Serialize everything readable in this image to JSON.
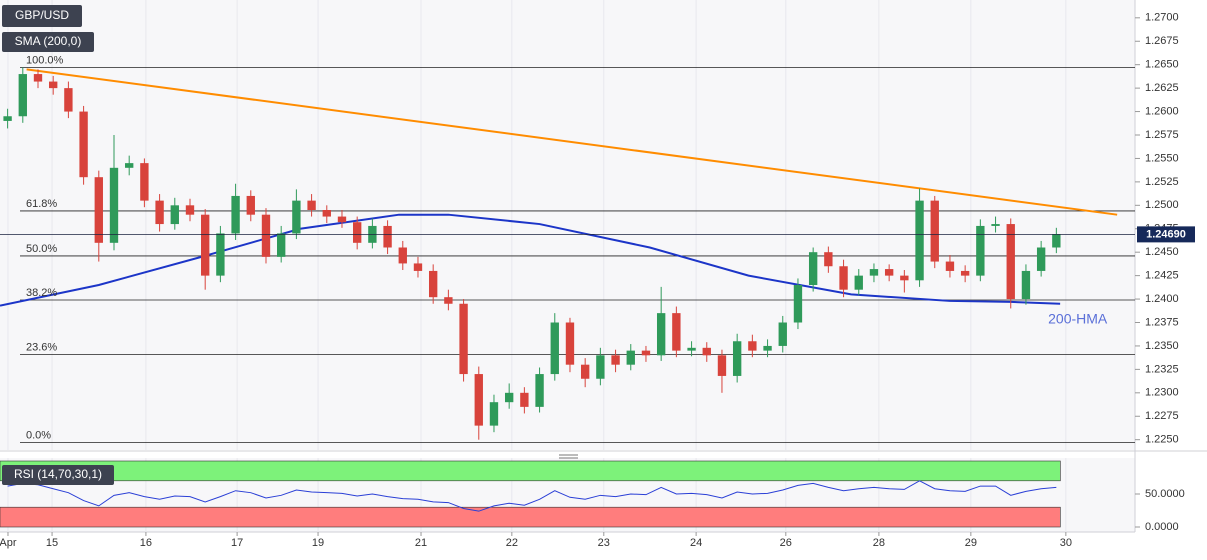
{
  "chart_data": {
    "type": "candlestick",
    "title": "GBP/USD",
    "overlay_label": "SMA (200,0)",
    "up_color": "#2f9a5a",
    "down_color": "#d8433c",
    "xlim": [
      0,
      298.7
    ],
    "xticks": [
      {
        "value": 2.1,
        "label": "Apr"
      },
      {
        "value": 13.7,
        "label": "15"
      },
      {
        "value": 38.4,
        "label": "16"
      },
      {
        "value": 62.4,
        "label": "17"
      },
      {
        "value": 83.7,
        "label": "19"
      },
      {
        "value": 110.8,
        "label": "21"
      },
      {
        "value": 134.7,
        "label": "22"
      },
      {
        "value": 158.9,
        "label": "23"
      },
      {
        "value": 183.2,
        "label": "24"
      },
      {
        "value": 206.8,
        "label": "26"
      },
      {
        "value": 231.3,
        "label": "28"
      },
      {
        "value": 255.5,
        "label": "29"
      },
      {
        "value": 280.5,
        "label": "30"
      }
    ],
    "ylim": [
      1.2239,
      1.2719
    ],
    "yticks": [
      {
        "value": 1.27,
        "label": "1.2700"
      },
      {
        "value": 1.2675,
        "label": "1.2675"
      },
      {
        "value": 1.265,
        "label": "1.2650"
      },
      {
        "value": 1.2625,
        "label": "1.2625"
      },
      {
        "value": 1.26,
        "label": "1.2600"
      },
      {
        "value": 1.2575,
        "label": "1.2575"
      },
      {
        "value": 1.255,
        "label": "1.2550"
      },
      {
        "value": 1.2525,
        "label": "1.2525"
      },
      {
        "value": 1.25,
        "label": "1.2500"
      },
      {
        "value": 1.2475,
        "label": "1.2475"
      },
      {
        "value": 1.245,
        "label": "1.2450"
      },
      {
        "value": 1.2425,
        "label": "1.2425"
      },
      {
        "value": 1.24,
        "label": "1.2400"
      },
      {
        "value": 1.2375,
        "label": "1.2375"
      },
      {
        "value": 1.235,
        "label": "1.2350"
      },
      {
        "value": 1.2325,
        "label": "1.2325"
      },
      {
        "value": 1.23,
        "label": "1.2300"
      },
      {
        "value": 1.2275,
        "label": "1.2275"
      },
      {
        "value": 1.225,
        "label": "1.2250"
      }
    ],
    "candles": {
      "x": [
        2,
        6,
        10,
        14,
        18,
        22,
        26,
        30,
        34,
        38,
        42,
        46,
        50,
        54,
        58,
        62,
        66,
        70,
        74,
        78,
        82,
        86,
        90,
        94,
        98,
        102,
        106,
        110,
        114,
        118,
        122,
        126,
        130,
        134,
        138,
        142,
        146,
        150,
        154,
        158,
        162,
        166,
        170,
        174,
        178,
        182,
        186,
        190,
        194,
        198,
        202,
        206,
        210,
        214,
        218,
        222,
        226,
        230,
        234,
        238,
        242,
        246,
        250,
        254,
        258,
        262,
        266,
        270,
        274,
        278
      ],
      "open": [
        1.259,
        1.2595,
        1.264,
        1.2632,
        1.2625,
        1.26,
        1.253,
        1.246,
        1.254,
        1.2545,
        1.2505,
        1.248,
        1.25,
        1.249,
        1.2425,
        1.247,
        1.251,
        1.249,
        1.2445,
        1.247,
        1.2505,
        1.2495,
        1.2488,
        1.2482,
        1.246,
        1.2478,
        1.2455,
        1.2438,
        1.243,
        1.2402,
        1.2395,
        1.232,
        1.2265,
        1.229,
        1.23,
        1.2285,
        1.232,
        1.2375,
        1.233,
        1.2315,
        1.234,
        1.233,
        1.2345,
        1.234,
        1.2385,
        1.2345,
        1.2348,
        1.234,
        1.2318,
        1.2355,
        1.2345,
        1.235,
        1.2375,
        1.2415,
        1.245,
        1.2435,
        1.241,
        1.2425,
        1.2432,
        1.2425,
        1.242,
        1.2505,
        1.244,
        1.243,
        1.2425,
        1.2478,
        1.248,
        1.24,
        1.243,
        1.2455
      ],
      "high": [
        1.2603,
        1.2647,
        1.2645,
        1.2638,
        1.2632,
        1.2606,
        1.2537,
        1.2575,
        1.2553,
        1.255,
        1.2512,
        1.2508,
        1.2507,
        1.2496,
        1.2478,
        1.2523,
        1.2516,
        1.2497,
        1.2478,
        1.2517,
        1.2512,
        1.25,
        1.2495,
        1.2488,
        1.2486,
        1.2484,
        1.2462,
        1.2445,
        1.2437,
        1.241,
        1.24,
        1.2328,
        1.2298,
        1.231,
        1.2306,
        1.2327,
        1.2385,
        1.238,
        1.2337,
        1.2348,
        1.2346,
        1.2352,
        1.235,
        1.2413,
        1.2392,
        1.2355,
        1.2354,
        1.2346,
        1.2363,
        1.2362,
        1.2357,
        1.2382,
        1.2422,
        1.2455,
        1.2456,
        1.2442,
        1.2432,
        1.2438,
        1.2437,
        1.2431,
        1.2518,
        1.251,
        1.2447,
        1.2436,
        1.2485,
        1.2488,
        1.2486,
        1.2437,
        1.2462,
        1.2476
      ],
      "low": [
        1.2582,
        1.2588,
        1.2625,
        1.2618,
        1.2593,
        1.2522,
        1.244,
        1.2452,
        1.2532,
        1.2498,
        1.2472,
        1.2474,
        1.2483,
        1.241,
        1.2418,
        1.2463,
        1.2483,
        1.2438,
        1.2439,
        1.2464,
        1.2488,
        1.2481,
        1.2476,
        1.2453,
        1.2454,
        1.2448,
        1.2431,
        1.2423,
        1.2395,
        1.2388,
        1.2312,
        1.225,
        1.2258,
        1.2283,
        1.2278,
        1.2279,
        1.2313,
        1.2322,
        1.2306,
        1.2308,
        1.2322,
        1.2324,
        1.2333,
        1.2334,
        1.2338,
        1.2339,
        1.2333,
        1.23,
        1.2311,
        1.2338,
        1.2338,
        1.2343,
        1.2368,
        1.2408,
        1.2428,
        1.2402,
        1.2404,
        1.2418,
        1.2419,
        1.2407,
        1.2413,
        1.2433,
        1.2423,
        1.2418,
        1.2419,
        1.2471,
        1.239,
        1.2394,
        1.2424,
        1.2449
      ],
      "close": [
        1.2595,
        1.264,
        1.2632,
        1.2625,
        1.26,
        1.253,
        1.246,
        1.254,
        1.2545,
        1.2505,
        1.248,
        1.25,
        1.249,
        1.2425,
        1.247,
        1.251,
        1.249,
        1.2445,
        1.247,
        1.2505,
        1.2495,
        1.2488,
        1.2482,
        1.246,
        1.2478,
        1.2455,
        1.2438,
        1.243,
        1.2402,
        1.2395,
        1.232,
        1.2265,
        1.229,
        1.23,
        1.2285,
        1.232,
        1.2375,
        1.233,
        1.2315,
        1.234,
        1.233,
        1.2345,
        1.234,
        1.2385,
        1.2345,
        1.2348,
        1.234,
        1.2318,
        1.2355,
        1.2345,
        1.235,
        1.2375,
        1.2415,
        1.245,
        1.2435,
        1.241,
        1.2425,
        1.2432,
        1.2425,
        1.242,
        1.2505,
        1.244,
        1.243,
        1.2425,
        1.2478,
        1.248,
        1.24,
        1.243,
        1.2455,
        1.2469
      ]
    },
    "hma": {
      "name": "200-HMA",
      "color": "#1c35c8",
      "x": [
        0,
        26,
        53,
        79,
        105,
        118,
        142,
        171,
        197,
        224,
        250,
        266,
        279
      ],
      "values": [
        1.2393,
        1.2415,
        1.2445,
        1.2475,
        1.249,
        1.249,
        1.248,
        1.2455,
        1.2425,
        1.2405,
        1.2398,
        1.2397,
        1.2395
      ]
    },
    "trendline": {
      "color": "#ff8c00",
      "x": [
        7,
        294
      ],
      "values": [
        1.2645,
        1.249
      ]
    },
    "fib_levels": [
      {
        "label": "100.0%",
        "value": 1.2647
      },
      {
        "label": "61.8%",
        "value": 1.2494
      },
      {
        "label": "50.0%",
        "value": 1.2446
      },
      {
        "label": "38.2%",
        "value": 1.2399
      },
      {
        "label": "23.6%",
        "value": 1.2341
      },
      {
        "label": "0.0%",
        "value": 1.2247
      }
    ],
    "last_price": {
      "value": 1.2469,
      "value_label": "1.24690"
    },
    "rsi": {
      "name": "RSI (14,70,30,1)",
      "color": "#2a3fd6",
      "ylim": [
        0,
        100
      ],
      "yticks": [
        {
          "value": 50,
          "label": "50.0000"
        },
        {
          "value": 0,
          "label": "0.0000"
        }
      ],
      "upper": 70,
      "lower": 30,
      "values": [
        62,
        66,
        64,
        58,
        52,
        40,
        32,
        48,
        52,
        46,
        42,
        47,
        46,
        38,
        46,
        55,
        52,
        44,
        48,
        56,
        53,
        52,
        51,
        47,
        50,
        46,
        43,
        42,
        38,
        37,
        28,
        24,
        32,
        36,
        33,
        42,
        55,
        45,
        42,
        48,
        46,
        50,
        49,
        60,
        50,
        51,
        49,
        44,
        53,
        50,
        51,
        56,
        63,
        66,
        60,
        55,
        58,
        60,
        58,
        57,
        70,
        58,
        55,
        54,
        62,
        62,
        48,
        54,
        58,
        60
      ]
    }
  }
}
